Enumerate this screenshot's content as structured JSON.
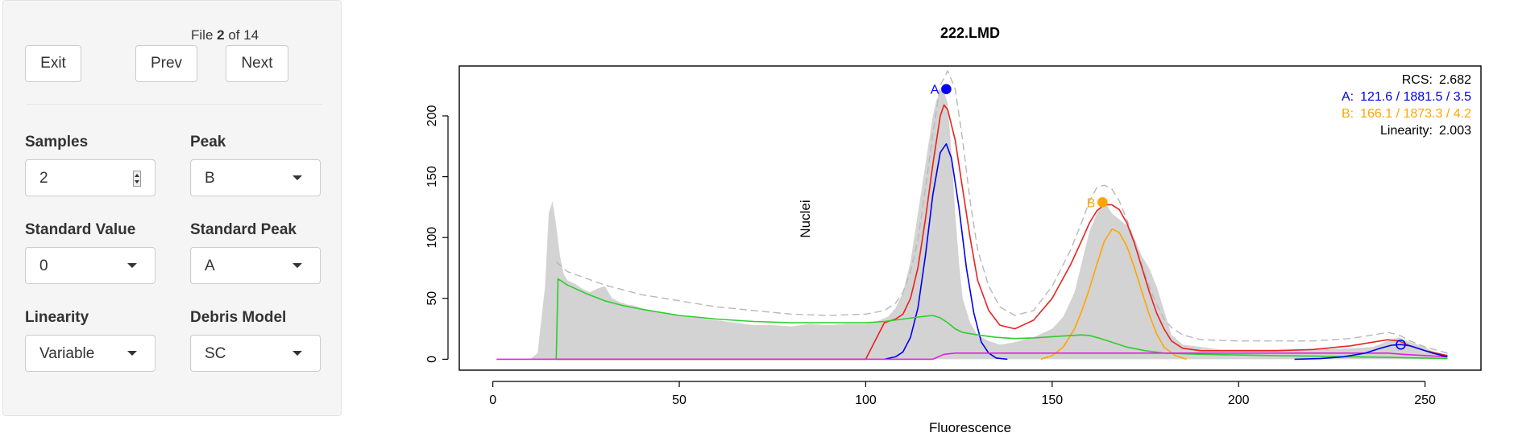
{
  "controls": {
    "file_prefix": "File ",
    "file_index": "2",
    "file_middle": " of ",
    "file_total": "14",
    "exit_label": "Exit",
    "prev_label": "Prev",
    "next_label": "Next",
    "samples_label": "Samples",
    "samples_value": "2",
    "peak_label": "Peak",
    "peak_value": "B",
    "standard_value_label": "Standard Value",
    "standard_value_value": "0",
    "standard_peak_label": "Standard Peak",
    "standard_peak_value": "A",
    "linearity_label": "Linearity",
    "linearity_value": "Variable",
    "debris_model_label": "Debris Model",
    "debris_model_value": "SC"
  },
  "chart_data": {
    "type": "line",
    "title": "222.LMD",
    "xlabel": "Fluorescence",
    "ylabel": "Nuclei",
    "xlim": [
      -9,
      265
    ],
    "ylim": [
      -9,
      241
    ],
    "xticks": [
      0,
      50,
      100,
      150,
      200,
      250
    ],
    "yticks": [
      0,
      50,
      100,
      150,
      200
    ],
    "colors": {
      "histogram": "#d3d3d3",
      "model": "#e8231f",
      "fit_envelope": "#b8b8b8",
      "peak_a": "#0000ee",
      "peak_b": "#ffa500",
      "debris": "#2ecc2e",
      "aggregate": "#dd22dd"
    },
    "stats": {
      "rcs": {
        "label": "RCS:",
        "value": "2.682"
      },
      "peak_a": {
        "label": "A:",
        "value": "121.6 / 1881.5 / 3.5"
      },
      "peak_b": {
        "label": "B:",
        "value": "166.1 / 1873.3 / 4.2"
      },
      "linearity": {
        "label": "Linearity:",
        "value": "2.003"
      }
    },
    "peak_markers": [
      {
        "label": "A",
        "x": 121.6,
        "y": 222,
        "color": "#0000ee",
        "filled": true
      },
      {
        "label": "B",
        "x": 163.5,
        "y": 129,
        "color": "#ffa500",
        "filled": true
      },
      {
        "label": "",
        "x": 243.5,
        "y": 12,
        "color": "#0000ee",
        "filled": false
      }
    ],
    "histogram": {
      "x": [
        10,
        12,
        14,
        15,
        16,
        17,
        18,
        19,
        20,
        22,
        24,
        26,
        28,
        30,
        32,
        34,
        36,
        38,
        40,
        45,
        50,
        55,
        60,
        65,
        70,
        75,
        80,
        85,
        90,
        95,
        100,
        103,
        106,
        108,
        110,
        112,
        114,
        116,
        117,
        118,
        119,
        120,
        121,
        122,
        123,
        124,
        125,
        126,
        128,
        130,
        133,
        136,
        140,
        145,
        150,
        153,
        156,
        158,
        160,
        162,
        164,
        165,
        166,
        168,
        170,
        172,
        174,
        176,
        178,
        180,
        182,
        185,
        190,
        195,
        200,
        210,
        220,
        230,
        236,
        240,
        243,
        246,
        250,
        253,
        256
      ],
      "y": [
        0,
        5,
        60,
        120,
        130,
        110,
        85,
        70,
        65,
        62,
        58,
        55,
        58,
        60,
        50,
        47,
        45,
        44,
        42,
        38,
        36,
        34,
        32,
        30,
        28,
        28,
        27,
        29,
        28,
        29,
        29,
        31,
        35,
        42,
        55,
        80,
        120,
        160,
        180,
        200,
        213,
        221,
        220,
        210,
        170,
        120,
        80,
        50,
        30,
        20,
        15,
        12,
        14,
        18,
        25,
        35,
        55,
        80,
        105,
        120,
        130,
        125,
        120,
        115,
        110,
        100,
        85,
        75,
        60,
        40,
        20,
        12,
        10,
        8,
        8,
        8,
        8,
        9,
        10,
        15,
        18,
        14,
        10,
        5,
        3
      ]
    },
    "series": [
      {
        "key": "fit_envelope",
        "x": [
          17,
          20,
          30,
          40,
          50,
          60,
          70,
          80,
          90,
          100,
          105,
          108,
          110,
          112,
          114,
          116,
          118,
          120,
          122,
          124,
          126,
          128,
          130,
          133,
          136,
          140,
          145,
          150,
          155,
          158,
          160,
          162,
          164,
          166,
          168,
          170,
          172,
          174,
          176,
          178,
          180,
          182,
          185,
          190,
          200,
          210,
          220,
          230,
          236,
          240,
          243,
          246,
          250,
          256
        ],
        "y": [
          80,
          72,
          61,
          53,
          48,
          43,
          40,
          37,
          36,
          37,
          40,
          46,
          55,
          72,
          98,
          140,
          185,
          225,
          237,
          222,
          180,
          130,
          90,
          60,
          43,
          36,
          40,
          60,
          90,
          113,
          130,
          141,
          143,
          140,
          130,
          115,
          97,
          78,
          60,
          45,
          33,
          26,
          20,
          16,
          15,
          15,
          15,
          17,
          20,
          22,
          20,
          15,
          10,
          5
        ]
      },
      {
        "key": "model",
        "x": [
          17,
          20,
          30,
          40,
          50,
          60,
          70,
          80,
          90,
          100,
          105,
          108,
          110,
          112,
          114,
          116,
          118,
          120,
          121,
          122,
          124,
          126,
          128,
          130,
          133,
          136,
          140,
          145,
          150,
          155,
          158,
          160,
          162,
          164,
          166,
          168,
          170,
          172,
          174,
          176,
          178,
          180,
          182,
          185,
          190,
          200,
          210,
          220,
          230,
          236,
          240,
          243,
          246,
          250,
          256
        ],
        "y": [
          0,
          0,
          0,
          0,
          0,
          0,
          0,
          0,
          0,
          0,
          30,
          33,
          37,
          50,
          75,
          115,
          160,
          200,
          209,
          205,
          180,
          140,
          100,
          65,
          40,
          28,
          25,
          32,
          50,
          78,
          98,
          112,
          122,
          127,
          127,
          123,
          112,
          96,
          76,
          56,
          38,
          25,
          15,
          9,
          7,
          7,
          7,
          8,
          11,
          14,
          16,
          15,
          11,
          7,
          3
        ]
      },
      {
        "key": "peak_a",
        "x": [
          105,
          108,
          110,
          112,
          114,
          116,
          118,
          120,
          121.6,
          123,
          125,
          127,
          129,
          131,
          133,
          135,
          138
        ],
        "y": [
          0,
          2,
          6,
          18,
          42,
          85,
          135,
          170,
          177,
          165,
          125,
          75,
          38,
          14,
          5,
          1,
          0
        ]
      },
      {
        "key": "peak_b",
        "x": [
          147,
          150,
          153,
          156,
          158,
          160,
          162,
          164,
          166.1,
          168,
          170,
          172,
          174,
          176,
          178,
          180,
          183,
          186
        ],
        "y": [
          0,
          3,
          10,
          25,
          40,
          58,
          78,
          97,
          107,
          104,
          93,
          76,
          56,
          37,
          21,
          10,
          3,
          0
        ]
      },
      {
        "key": "debris",
        "x": [
          17,
          17.5,
          20,
          25,
          30,
          35,
          40,
          50,
          60,
          70,
          80,
          90,
          100,
          105,
          110,
          115,
          118,
          120,
          122,
          124,
          126,
          130,
          135,
          140,
          145,
          150,
          155,
          158,
          160,
          163,
          166,
          170,
          175,
          180,
          190,
          200,
          210,
          220,
          230,
          240,
          245,
          250,
          256
        ],
        "y": [
          0,
          66,
          61,
          54,
          48,
          44,
          41,
          36,
          33,
          31,
          30,
          30,
          30,
          31,
          33,
          35,
          36,
          34,
          30,
          25,
          22,
          20,
          18,
          17,
          17.5,
          18.5,
          19.5,
          20,
          19.5,
          17,
          14,
          10,
          7,
          5,
          4,
          3.5,
          3,
          2.5,
          2,
          1.5,
          1.2,
          1,
          0.5
        ]
      },
      {
        "key": "aggregate",
        "x": [
          1,
          118,
          121,
          124,
          240,
          244,
          256
        ],
        "y": [
          0,
          0,
          4,
          5,
          5,
          4,
          2
        ]
      },
      {
        "key": "peak_a",
        "x": [
          215,
          222,
          228,
          234,
          238,
          241,
          243.5,
          246,
          249,
          252,
          256
        ],
        "y": [
          0,
          0.5,
          2,
          5,
          9,
          11.5,
          12,
          11,
          8,
          5,
          2
        ]
      }
    ]
  }
}
